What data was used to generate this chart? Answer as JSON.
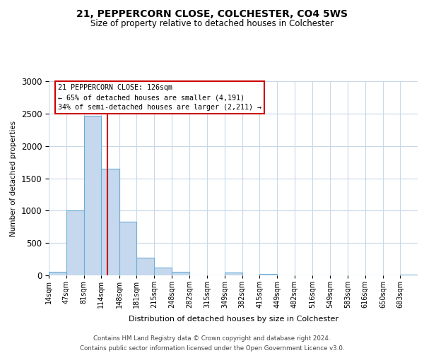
{
  "title": "21, PEPPERCORN CLOSE, COLCHESTER, CO4 5WS",
  "subtitle": "Size of property relative to detached houses in Colchester",
  "xlabel": "Distribution of detached houses by size in Colchester",
  "ylabel": "Number of detached properties",
  "bar_labels": [
    "14sqm",
    "47sqm",
    "81sqm",
    "114sqm",
    "148sqm",
    "181sqm",
    "215sqm",
    "248sqm",
    "282sqm",
    "315sqm",
    "349sqm",
    "382sqm",
    "415sqm",
    "449sqm",
    "482sqm",
    "516sqm",
    "549sqm",
    "583sqm",
    "616sqm",
    "650sqm",
    "683sqm"
  ],
  "bar_values": [
    55,
    1000,
    2470,
    1650,
    830,
    270,
    120,
    55,
    0,
    0,
    40,
    0,
    20,
    0,
    0,
    0,
    0,
    0,
    0,
    0,
    10
  ],
  "bar_color": "#c5d8ed",
  "bar_edge_color": "#6aaed6",
  "ylim": [
    0,
    3000
  ],
  "yticks": [
    0,
    500,
    1000,
    1500,
    2000,
    2500,
    3000
  ],
  "property_line_x": 126,
  "property_line_label": "21 PEPPERCORN CLOSE: 126sqm",
  "annotation_line1": "← 65% of detached houses are smaller (4,191)",
  "annotation_line2": "34% of semi-detached houses are larger (2,211) →",
  "annotation_box_color": "#ffffff",
  "annotation_box_edge": "#cc0000",
  "vline_color": "#cc0000",
  "footer1": "Contains HM Land Registry data © Crown copyright and database right 2024.",
  "footer2": "Contains public sector information licensed under the Open Government Licence v3.0.",
  "bg_color": "#ffffff",
  "grid_color": "#c8d8e8",
  "bin_edges": [
    14,
    47,
    81,
    114,
    148,
    181,
    215,
    248,
    282,
    315,
    349,
    382,
    415,
    449,
    482,
    516,
    549,
    583,
    616,
    650,
    683,
    716
  ]
}
